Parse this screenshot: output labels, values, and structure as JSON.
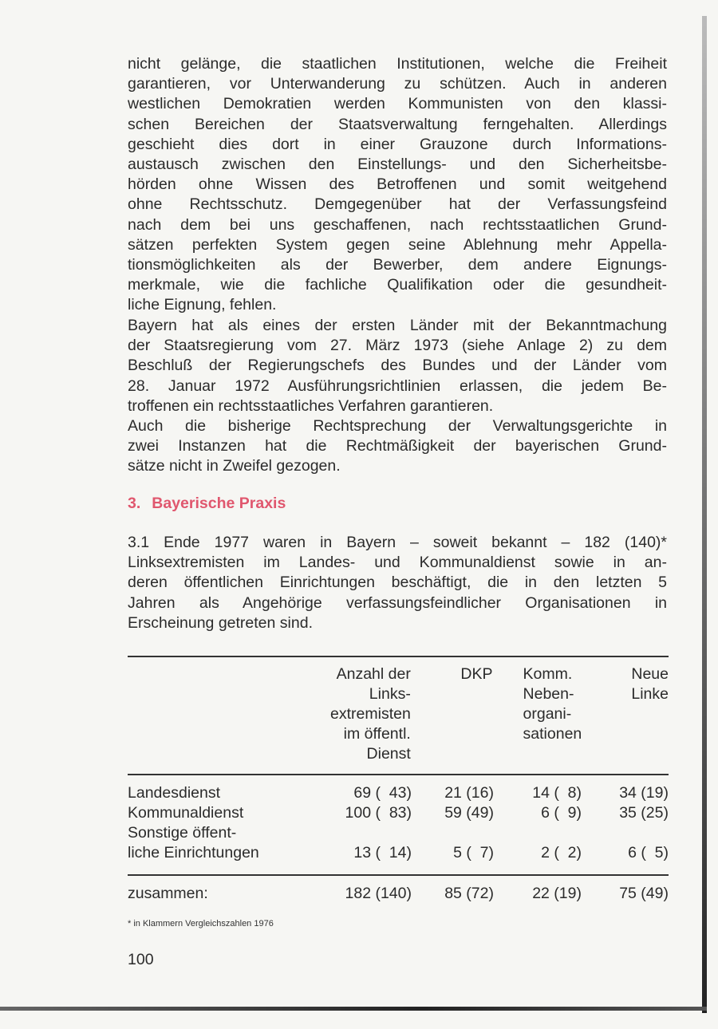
{
  "paragraphs": {
    "p1": [
      "nicht gelänge, die staatlichen Institutionen, welche die Freiheit",
      "garantieren, vor Unterwanderung zu schützen. Auch in anderen",
      "westlichen Demokratien werden Kommunisten von den klassi-",
      "schen Bereichen der Staatsverwaltung ferngehalten. Allerdings",
      "geschieht dies dort in einer Grauzone durch Informations-",
      "austausch zwischen den Einstellungs- und den Sicherheitsbe-",
      "hörden ohne Wissen des Betroffenen und somit weitgehend",
      "ohne Rechtsschutz. Demgegenüber hat der Verfassungsfeind",
      "nach dem bei uns geschaffenen, nach rechtsstaatlichen Grund-",
      "sätzen perfekten System gegen seine Ablehnung mehr Appella-",
      "tionsmöglichkeiten als der Bewerber, dem andere Eignungs-",
      "merkmale, wie die fachliche Qualifikation oder die gesundheit-",
      "liche Eignung, fehlen."
    ],
    "p2": [
      "Bayern hat als eines der ersten Länder mit der Bekanntmachung",
      "der Staatsregierung vom 27. März 1973 (siehe Anlage 2) zu dem",
      "Beschluß der Regierungschefs des Bundes und der Länder vom",
      "28. Januar 1972 Ausführungsrichtlinien erlassen, die jedem Be-",
      "troffenen ein rechtsstaatliches Verfahren garantieren."
    ],
    "p3": [
      "Auch die bisherige Rechtsprechung der Verwaltungsgerichte in",
      "zwei Instanzen hat die Rechtmäßigkeit der bayerischen Grund-",
      "sätze nicht in Zweifel gezogen."
    ],
    "p4": [
      "3.1   Ende 1977 waren in Bayern – soweit bekannt – 182 (140)*",
      "Linksextremisten im Landes- und Kommunaldienst sowie in an-",
      "deren öffentlichen Einrichtungen beschäftigt, die in den letzten 5",
      "Jahren als Angehörige verfassungsfeindlicher Organisationen in",
      "Erscheinung getreten sind."
    ]
  },
  "heading": {
    "number": "3.",
    "title": "Bayerische Praxis",
    "color": "#e0576e"
  },
  "table": {
    "headers": [
      [
        "Anzahl der",
        "Links-",
        "extremisten",
        "im öffentl.",
        "Dienst"
      ],
      [
        "DKP"
      ],
      [
        "Komm.",
        "Neben-",
        "organi-",
        "sationen"
      ],
      [
        "Neue",
        "Linke"
      ]
    ],
    "rows": [
      {
        "label": [
          "Landesdienst"
        ],
        "values": [
          "69 (  43)",
          "21 (16)",
          "14 (  8)",
          "34 (19)"
        ]
      },
      {
        "label": [
          "Kommunaldienst"
        ],
        "values": [
          "100 (  83)",
          "59 (49)",
          "6 (  9)",
          "35 (25)"
        ]
      },
      {
        "label": [
          "Sonstige öffent-",
          "liche Einrichtungen"
        ],
        "values": [
          "13 (  14)",
          "5 (  7)",
          "2 (  2)",
          "6 (  5)"
        ]
      }
    ],
    "total": {
      "label": "zusammen:",
      "values": [
        "182 (140)",
        "85 (72)",
        "22 (19)",
        "75 (49)"
      ]
    }
  },
  "footnote": "*  in Klammern Vergleichszahlen 1976",
  "page_number": "100"
}
